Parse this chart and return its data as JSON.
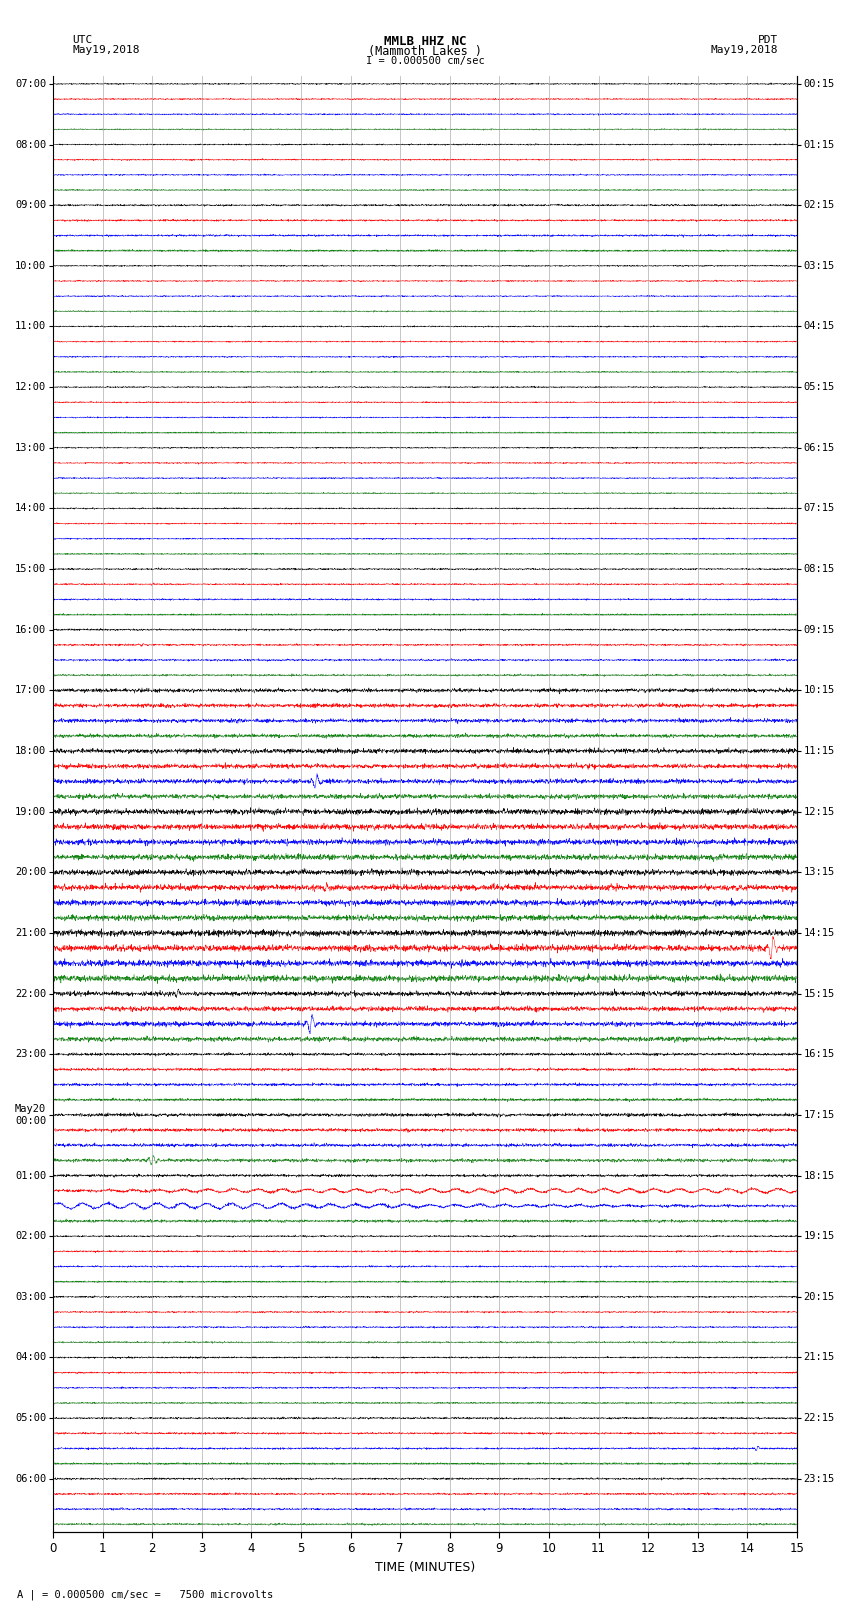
{
  "title_line1": "MMLB HHZ NC",
  "title_line2": "(Mammoth Lakes )",
  "scale_label": "I = 0.000500 cm/sec",
  "left_label_line1": "UTC",
  "left_label_line2": "May19,2018",
  "right_label_line1": "PDT",
  "right_label_line2": "May19,2018",
  "bottom_label": "TIME (MINUTES)",
  "footer_label": "A | = 0.000500 cm/sec =   7500 microvolts",
  "xlabel_ticks": [
    0,
    1,
    2,
    3,
    4,
    5,
    6,
    7,
    8,
    9,
    10,
    11,
    12,
    13,
    14,
    15
  ],
  "utc_times": [
    "07:00",
    "08:00",
    "09:00",
    "10:00",
    "11:00",
    "12:00",
    "13:00",
    "14:00",
    "15:00",
    "16:00",
    "17:00",
    "18:00",
    "19:00",
    "20:00",
    "21:00",
    "22:00",
    "23:00",
    "May20\n00:00",
    "01:00",
    "02:00",
    "03:00",
    "04:00",
    "05:00",
    "06:00"
  ],
  "pdt_times": [
    "00:15",
    "01:15",
    "02:15",
    "03:15",
    "04:15",
    "05:15",
    "06:15",
    "07:15",
    "08:15",
    "09:15",
    "10:15",
    "11:15",
    "12:15",
    "13:15",
    "14:15",
    "15:15",
    "16:15",
    "17:15",
    "18:15",
    "19:15",
    "20:15",
    "21:15",
    "22:15",
    "23:15"
  ],
  "n_hour_blocks": 24,
  "traces_per_block": 4,
  "colors_cycle": [
    "black",
    "red",
    "blue",
    "green"
  ],
  "bg_color": "white",
  "grid_color": "#999999",
  "amplitude_base": 0.08,
  "noise_seed": 42
}
